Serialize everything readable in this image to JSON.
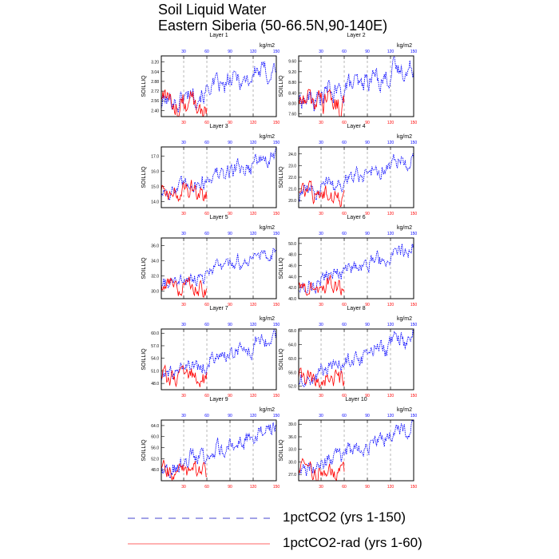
{
  "title": {
    "line1": "Soil Liquid Water",
    "line2": "Eastern Siberia (50-66.5N,90-140E)"
  },
  "colors": {
    "series_150": "#0000ff",
    "series_60": "#ff0000",
    "top_ticks": "#0000ff",
    "bottom_ticks": "#ff0000",
    "dashed_grid": "#888888"
  },
  "legend": [
    {
      "label": "1pctCO2 (yrs 1-150)",
      "color": "#4444cc",
      "style": "dashed"
    },
    {
      "label": "1pctCO2-rad (yrs 1-60)",
      "color": "#ff6666",
      "style": "solid"
    }
  ],
  "chart_data": [
    {
      "type": "line",
      "title": "Layer 1",
      "ylabel": "SOILLIQ",
      "unit": "kg/m2",
      "xlim": [
        1,
        150
      ],
      "ylim": [
        2.3,
        3.3
      ],
      "yticks": [
        "2.40",
        "2.56",
        "2.72",
        "2.88",
        "3.04",
        "3.20"
      ],
      "xticks_top": [
        "30",
        "60",
        "90",
        "120",
        "150"
      ],
      "xticks_bottom": [
        "30",
        "60",
        "90",
        "120",
        "150"
      ],
      "start_150": 2.5,
      "end_150": 3.1,
      "start_60": 2.55,
      "end_60": 2.55,
      "noise": 0.13,
      "grid": true
    },
    {
      "type": "line",
      "title": "Layer 2",
      "ylabel": "SOILLIQ",
      "unit": "kg/m2",
      "xlim": [
        1,
        150
      ],
      "ylim": [
        7.5,
        9.8
      ],
      "yticks": [
        "7.60",
        "8.00",
        "8.40",
        "8.80",
        "9.20",
        "9.60"
      ],
      "xticks_top": [
        "30",
        "60",
        "90",
        "120",
        "150"
      ],
      "xticks_bottom": [
        "30",
        "60",
        "90",
        "120",
        "150"
      ],
      "start_150": 8.0,
      "end_150": 9.4,
      "start_60": 8.1,
      "end_60": 8.1,
      "noise": 0.3,
      "grid": true
    },
    {
      "type": "line",
      "title": "Layer 3",
      "ylabel": "SOILLIQ",
      "unit": "kg/m2",
      "xlim": [
        1,
        150
      ],
      "ylim": [
        13.6,
        17.6
      ],
      "yticks": [
        "14.0",
        "15.0",
        "16.0",
        "17.0"
      ],
      "xticks_top": [
        "30",
        "60",
        "90",
        "120",
        "150"
      ],
      "xticks_bottom": [
        "30",
        "60",
        "90",
        "120",
        "150"
      ],
      "start_150": 14.5,
      "end_150": 17.0,
      "start_60": 14.6,
      "end_60": 14.8,
      "noise": 0.45,
      "grid": true
    },
    {
      "type": "line",
      "title": "Layer 4",
      "ylabel": "SOILLIQ",
      "unit": "kg/m2",
      "xlim": [
        1,
        150
      ],
      "ylim": [
        19.4,
        24.6
      ],
      "yticks": [
        "20.0",
        "21.0",
        "22.0",
        "23.0",
        "24.0"
      ],
      "xticks_top": [
        "30",
        "60",
        "90",
        "120",
        "150"
      ],
      "xticks_bottom": [
        "30",
        "60",
        "90",
        "120",
        "150"
      ],
      "start_150": 20.4,
      "end_150": 23.8,
      "start_60": 20.6,
      "end_60": 20.8,
      "noise": 0.55,
      "grid": true
    },
    {
      "type": "line",
      "title": "Layer 5",
      "ylabel": "SOILLIQ",
      "unit": "kg/m2",
      "xlim": [
        1,
        150
      ],
      "ylim": [
        29.0,
        37.0
      ],
      "yticks": [
        "30.0",
        "32.0",
        "34.0",
        "36.0"
      ],
      "xticks_top": [
        "30",
        "60",
        "90",
        "120",
        "150"
      ],
      "xticks_bottom": [
        "30",
        "60",
        "90",
        "120",
        "150"
      ],
      "start_150": 30.5,
      "end_150": 35.5,
      "start_60": 30.6,
      "end_60": 31.2,
      "noise": 0.8,
      "grid": true
    },
    {
      "type": "line",
      "title": "Layer 6",
      "ylabel": "SOILLIQ",
      "unit": "kg/m2",
      "xlim": [
        1,
        150
      ],
      "ylim": [
        40.0,
        51.0
      ],
      "yticks": [
        "40.0",
        "42.0",
        "44.0",
        "46.0",
        "48.0",
        "50.0"
      ],
      "xticks_top": [
        "30",
        "60",
        "90",
        "120",
        "150"
      ],
      "xticks_bottom": [
        "30",
        "60",
        "90",
        "120",
        "150"
      ],
      "start_150": 42.0,
      "end_150": 49.5,
      "start_60": 42.0,
      "end_60": 43.0,
      "noise": 1.1,
      "grid": true
    },
    {
      "type": "line",
      "title": "Layer 7",
      "ylabel": "SOILLIQ",
      "unit": "kg/m2",
      "xlim": [
        1,
        150
      ],
      "ylim": [
        46.5,
        61.0
      ],
      "yticks": [
        "48.0",
        "51.0",
        "54.0",
        "57.0",
        "60.0"
      ],
      "xticks_top": [
        "30",
        "60",
        "90",
        "120",
        "150"
      ],
      "xticks_bottom": [
        "30",
        "60",
        "90",
        "120",
        "150"
      ],
      "start_150": 49.0,
      "end_150": 59.0,
      "start_60": 49.2,
      "end_60": 50.5,
      "noise": 1.5,
      "grid": true
    },
    {
      "type": "line",
      "title": "Layer 8",
      "ylabel": "SOILLIQ",
      "unit": "kg/m2",
      "xlim": [
        1,
        150
      ],
      "ylim": [
        51.0,
        68.5
      ],
      "yticks": [
        "52.0",
        "56.0",
        "60.0",
        "64.0",
        "68.0"
      ],
      "xticks_top": [
        "30",
        "60",
        "90",
        "120",
        "150"
      ],
      "xticks_bottom": [
        "30",
        "60",
        "90",
        "120",
        "150"
      ],
      "start_150": 53.5,
      "end_150": 66.5,
      "start_60": 53.5,
      "end_60": 55.5,
      "noise": 2.0,
      "grid": true
    },
    {
      "type": "line",
      "title": "Layer 9",
      "ylabel": "SOILLIQ",
      "unit": "kg/m2",
      "xlim": [
        1,
        150
      ],
      "ylim": [
        44.0,
        66.0
      ],
      "yticks": [
        "48.0",
        "52.0",
        "56.0",
        "60.0",
        "64.0"
      ],
      "xticks_top": [
        "30",
        "60",
        "90",
        "120",
        "150"
      ],
      "xticks_bottom": [
        "30",
        "60",
        "90",
        "120",
        "150"
      ],
      "start_150": 47.0,
      "end_150": 63.5,
      "start_60": 47.5,
      "end_60": 49.5,
      "noise": 2.5,
      "grid": true
    },
    {
      "type": "line",
      "title": "Layer 10",
      "ylabel": "SOILLIQ",
      "unit": "kg/m2",
      "xlim": [
        1,
        150
      ],
      "ylim": [
        25.5,
        40.0
      ],
      "yticks": [
        "27.0",
        "30.0",
        "33.0",
        "36.0",
        "39.0"
      ],
      "xticks_top": [
        "30",
        "60",
        "90",
        "120",
        "150"
      ],
      "xticks_bottom": [
        "30",
        "60",
        "90",
        "120",
        "150"
      ],
      "start_150": 27.5,
      "end_150": 38.5,
      "start_60": 27.6,
      "end_60": 29.0,
      "noise": 1.5,
      "grid": true
    }
  ]
}
